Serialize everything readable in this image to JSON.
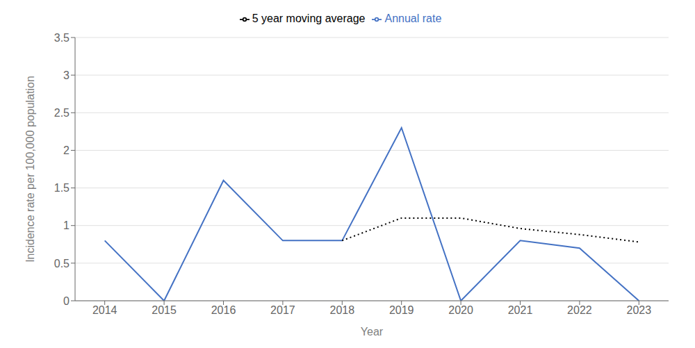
{
  "chart_data": {
    "type": "line",
    "x": [
      2014,
      2015,
      2016,
      2017,
      2018,
      2019,
      2020,
      2021,
      2022,
      2023
    ],
    "series": [
      {
        "name": "Annual rate",
        "color": "#4472C4",
        "line_style": "solid",
        "values": [
          0.8,
          0.0,
          1.6,
          0.8,
          0.8,
          2.3,
          0.0,
          0.8,
          0.7,
          0.0
        ]
      },
      {
        "name": "5 year moving average",
        "color": "#000000",
        "line_style": "dotted",
        "values": [
          null,
          null,
          null,
          null,
          0.8,
          1.1,
          1.1,
          0.96,
          0.88,
          0.78
        ]
      }
    ],
    "xlabel": "Year",
    "ylabel": "Incidence rate per 100,000 population",
    "xlim": [
      2013.5,
      2023.5
    ],
    "xticks": [
      2014,
      2015,
      2016,
      2017,
      2018,
      2019,
      2020,
      2021,
      2022,
      2023
    ],
    "ylim": [
      0,
      3.5
    ],
    "yticks": [
      0,
      0.5,
      1,
      1.5,
      2,
      2.5,
      3,
      3.5
    ],
    "grid": true,
    "legend": "top"
  }
}
